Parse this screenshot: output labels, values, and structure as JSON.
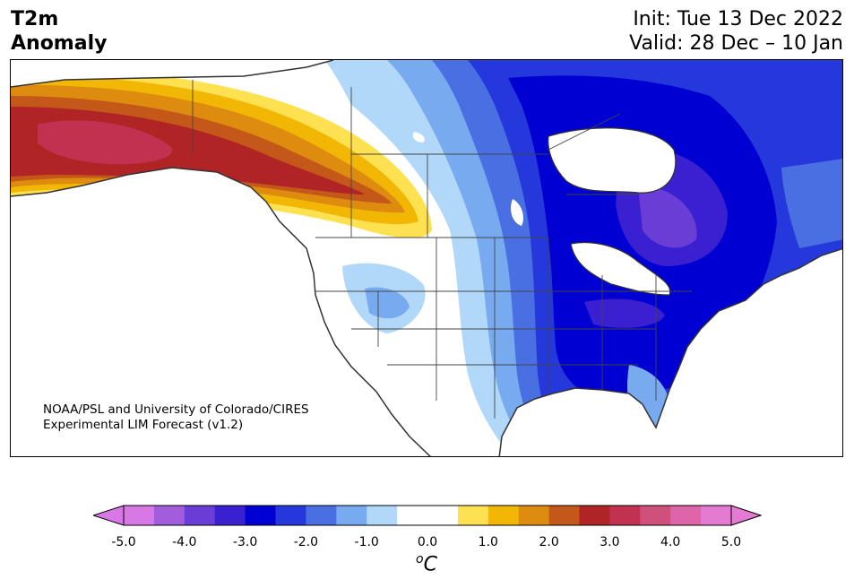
{
  "title": {
    "left_line1": "T2m",
    "left_line2": "Anomaly",
    "init": "Init: Tue 13 Dec 2022",
    "valid": "Valid: 28 Dec – 10 Jan"
  },
  "credit": {
    "line1": "NOAA/PSL and University of Colorado/CIRES",
    "line2": "Experimental LIM Forecast (v1.2)"
  },
  "colorbar": {
    "ticks": [
      "-5.0",
      "-4.0",
      "-3.0",
      "-2.0",
      "-1.0",
      "0.0",
      "1.0",
      "2.0",
      "3.0",
      "4.0",
      "5.0"
    ],
    "unit_sup": "o",
    "unit": "C",
    "colors": [
      "#d877e6",
      "#a25ddc",
      "#6a3ed6",
      "#3a20d0",
      "#0000d2",
      "#2538db",
      "#4a6fe3",
      "#78aaf0",
      "#b1d8f8",
      "#ffffff",
      "#ffffff",
      "#fde150",
      "#f2b705",
      "#de8c10",
      "#c45818",
      "#b02425",
      "#c23250",
      "#d0507c",
      "#dd65a8",
      "#e57ad2"
    ],
    "under_color": "#d877e6",
    "over_color": "#e57ad2"
  }
}
